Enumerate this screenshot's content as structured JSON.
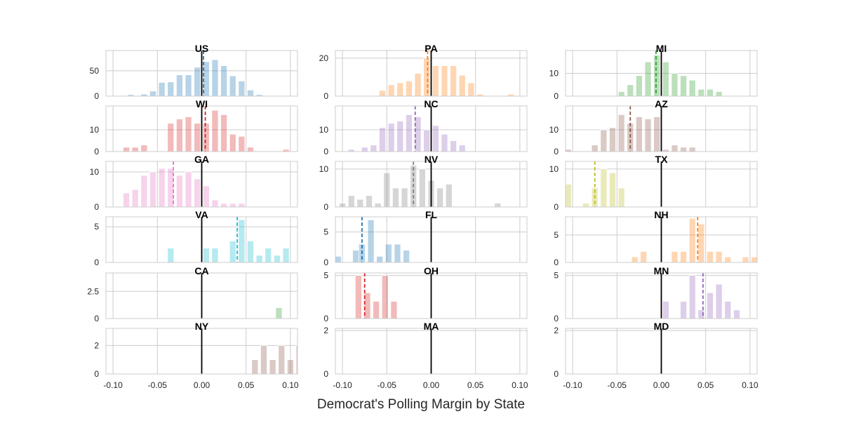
{
  "figure": {
    "xlabel": "Democrat's Polling Margin by State"
  },
  "chart_data": {
    "type": "bar",
    "grid": true,
    "xlim": [
      -0.108,
      0.108
    ],
    "shared_xticks": [
      "-0.10",
      "-0.05",
      "0.00",
      "0.05",
      "0.10"
    ],
    "bin_width": 0.0072,
    "panels": [
      {
        "name": "US",
        "color": "#1f77b4",
        "ylim": [
          0,
          90
        ],
        "yticks": [
          0,
          50
        ],
        "mean": 0.002,
        "zero_line": 0,
        "bars": [
          [
            -0.08,
            3
          ],
          [
            -0.065,
            4
          ],
          [
            -0.055,
            10
          ],
          [
            -0.045,
            27
          ],
          [
            -0.035,
            28
          ],
          [
            -0.025,
            42
          ],
          [
            -0.015,
            42
          ],
          [
            -0.005,
            57
          ],
          [
            0.005,
            68
          ],
          [
            0.015,
            72
          ],
          [
            0.025,
            60
          ],
          [
            0.035,
            40
          ],
          [
            0.045,
            30
          ],
          [
            0.055,
            12
          ],
          [
            0.065,
            3
          ]
        ]
      },
      {
        "name": "PA",
        "color": "#ff7f0e",
        "ylim": [
          0,
          24
        ],
        "yticks": [
          0,
          20
        ],
        "mean": -0.004,
        "zero_line": 0,
        "bars": [
          [
            -0.055,
            3
          ],
          [
            -0.045,
            6
          ],
          [
            -0.035,
            7
          ],
          [
            -0.025,
            8
          ],
          [
            -0.015,
            12
          ],
          [
            -0.005,
            20
          ],
          [
            0.005,
            16
          ],
          [
            0.015,
            16
          ],
          [
            0.025,
            16
          ],
          [
            0.035,
            11
          ],
          [
            0.045,
            7
          ],
          [
            0.055,
            1
          ],
          [
            0.09,
            1
          ]
        ]
      },
      {
        "name": "MI",
        "color": "#2ca02c",
        "ylim": [
          0,
          20
        ],
        "yticks": [
          0,
          10
        ],
        "mean": -0.006,
        "zero_line": 0,
        "bars": [
          [
            -0.045,
            2
          ],
          [
            -0.035,
            5
          ],
          [
            -0.025,
            9
          ],
          [
            -0.015,
            15
          ],
          [
            -0.005,
            18
          ],
          [
            0.005,
            15
          ],
          [
            0.015,
            10
          ],
          [
            0.025,
            9
          ],
          [
            0.035,
            7
          ],
          [
            0.045,
            3
          ],
          [
            0.055,
            3
          ],
          [
            0.065,
            2
          ]
        ]
      },
      {
        "name": "WI",
        "color": "#d62728",
        "ylim": [
          0,
          21
        ],
        "yticks": [
          0,
          10
        ],
        "mean": 0.004,
        "zero_line": 0,
        "bars": [
          [
            -0.085,
            2
          ],
          [
            -0.075,
            2
          ],
          [
            -0.065,
            3
          ],
          [
            -0.035,
            13
          ],
          [
            -0.025,
            15
          ],
          [
            -0.015,
            16
          ],
          [
            -0.005,
            13
          ],
          [
            0.005,
            13
          ],
          [
            0.015,
            19
          ],
          [
            0.025,
            17
          ],
          [
            0.035,
            8
          ],
          [
            0.045,
            7
          ],
          [
            0.055,
            2
          ],
          [
            0.095,
            1
          ]
        ]
      },
      {
        "name": "NC",
        "color": "#9467bd",
        "ylim": [
          0,
          21
        ],
        "yticks": [
          0,
          10
        ],
        "mean": -0.018,
        "zero_line": 0,
        "bars": [
          [
            -0.09,
            1
          ],
          [
            -0.075,
            2
          ],
          [
            -0.065,
            3
          ],
          [
            -0.055,
            11
          ],
          [
            -0.045,
            13
          ],
          [
            -0.035,
            14
          ],
          [
            -0.025,
            17
          ],
          [
            -0.015,
            16
          ],
          [
            -0.005,
            10
          ],
          [
            0.005,
            12
          ],
          [
            0.015,
            8
          ],
          [
            0.025,
            5
          ],
          [
            0.035,
            3
          ]
        ]
      },
      {
        "name": "AZ",
        "color": "#8c564b",
        "ylim": [
          0,
          21
        ],
        "yticks": [
          0,
          10
        ],
        "mean": -0.035,
        "zero_line": 0,
        "bars": [
          [
            -0.105,
            1
          ],
          [
            -0.075,
            3
          ],
          [
            -0.065,
            10
          ],
          [
            -0.055,
            11
          ],
          [
            -0.045,
            17
          ],
          [
            -0.035,
            13
          ],
          [
            -0.025,
            16
          ],
          [
            -0.015,
            15
          ],
          [
            -0.005,
            16
          ],
          [
            0.005,
            1
          ],
          [
            0.015,
            3
          ],
          [
            0.025,
            2
          ],
          [
            0.035,
            2
          ]
        ]
      },
      {
        "name": "GA",
        "color": "#e377c2",
        "ylim": [
          0,
          13
        ],
        "yticks": [
          0,
          10
        ],
        "mean": -0.032,
        "zero_line": 0,
        "bars": [
          [
            -0.085,
            4
          ],
          [
            -0.075,
            5
          ],
          [
            -0.065,
            9
          ],
          [
            -0.055,
            10
          ],
          [
            -0.045,
            11
          ],
          [
            -0.035,
            11
          ],
          [
            -0.025,
            9
          ],
          [
            -0.015,
            10
          ],
          [
            -0.005,
            8
          ],
          [
            0.005,
            6
          ],
          [
            0.015,
            2
          ],
          [
            0.025,
            1
          ],
          [
            0.035,
            1
          ],
          [
            0.045,
            1
          ]
        ]
      },
      {
        "name": "NV",
        "color": "#7f7f7f",
        "ylim": [
          0,
          12
        ],
        "yticks": [
          0,
          10
        ],
        "mean": -0.02,
        "zero_line": 0,
        "bars": [
          [
            -0.1,
            1
          ],
          [
            -0.09,
            3
          ],
          [
            -0.08,
            2
          ],
          [
            -0.07,
            3
          ],
          [
            -0.06,
            1
          ],
          [
            -0.05,
            9
          ],
          [
            -0.04,
            5
          ],
          [
            -0.03,
            5
          ],
          [
            -0.02,
            11
          ],
          [
            -0.01,
            10
          ],
          [
            0.0,
            7
          ],
          [
            0.01,
            5
          ],
          [
            0.02,
            6
          ],
          [
            0.075,
            1
          ]
        ]
      },
      {
        "name": "TX",
        "color": "#bcbd22",
        "ylim": [
          0,
          12
        ],
        "yticks": [
          0,
          10
        ],
        "mean": -0.075,
        "zero_line": 0,
        "bars": [
          [
            -0.105,
            6
          ],
          [
            -0.085,
            1
          ],
          [
            -0.075,
            5
          ],
          [
            -0.065,
            10
          ],
          [
            -0.055,
            9
          ],
          [
            -0.045,
            5
          ]
        ]
      },
      {
        "name": "VA",
        "color": "#17becf",
        "ylim": [
          0,
          6.4
        ],
        "yticks": [
          0,
          5
        ],
        "mean": 0.04,
        "zero_line": 0,
        "bars": [
          [
            -0.035,
            2
          ],
          [
            0.005,
            2
          ],
          [
            0.015,
            2
          ],
          [
            0.035,
            3
          ],
          [
            0.045,
            6
          ],
          [
            0.055,
            3
          ],
          [
            0.065,
            1
          ],
          [
            0.075,
            2
          ],
          [
            0.085,
            1
          ],
          [
            0.095,
            2
          ]
        ]
      },
      {
        "name": "FL",
        "color": "#1f77b4",
        "ylim": [
          0,
          7.5
        ],
        "yticks": [
          0,
          5
        ],
        "mean": -0.078,
        "zero_line": 0,
        "bars": [
          [
            -0.105,
            1
          ],
          [
            -0.085,
            2
          ],
          [
            -0.078,
            3
          ],
          [
            -0.068,
            7
          ],
          [
            -0.058,
            1
          ],
          [
            -0.048,
            3
          ],
          [
            -0.038,
            3
          ],
          [
            -0.028,
            2
          ]
        ]
      },
      {
        "name": "NH",
        "color": "#ff7f0e",
        "ylim": [
          0,
          8.3
        ],
        "yticks": [
          0,
          5
        ],
        "mean": 0.041,
        "zero_line": 0,
        "bars": [
          [
            -0.03,
            1
          ],
          [
            -0.02,
            2
          ],
          [
            0.015,
            2
          ],
          [
            0.025,
            2
          ],
          [
            0.035,
            8
          ],
          [
            0.045,
            7
          ],
          [
            0.055,
            2
          ],
          [
            0.065,
            2
          ],
          [
            0.075,
            1
          ],
          [
            0.095,
            1
          ],
          [
            0.105,
            1
          ]
        ]
      },
      {
        "name": "CA",
        "color": "#2ca02c",
        "ylim": [
          0,
          4.2
        ],
        "yticks": [
          0,
          2.5
        ],
        "zero_line": 0,
        "bars": [
          [
            0.087,
            1
          ]
        ]
      },
      {
        "name": "OH",
        "color": "#d62728",
        "ylim": [
          0,
          5.3
        ],
        "yticks": [
          0,
          5
        ],
        "mean": -0.075,
        "zero_line": 0,
        "bars": [
          [
            -0.082,
            5
          ],
          [
            -0.072,
            3
          ],
          [
            -0.062,
            2
          ],
          [
            -0.052,
            5
          ],
          [
            -0.042,
            2
          ]
        ]
      },
      {
        "name": "MN",
        "color": "#9467bd",
        "ylim": [
          0,
          5.3
        ],
        "yticks": [
          0,
          5
        ],
        "mean": 0.047,
        "zero_line": 0,
        "bars": [
          [
            0.005,
            2
          ],
          [
            0.025,
            2
          ],
          [
            0.035,
            5
          ],
          [
            0.045,
            1
          ],
          [
            0.055,
            3
          ],
          [
            0.065,
            4
          ],
          [
            0.075,
            2
          ],
          [
            0.085,
            1
          ]
        ]
      },
      {
        "name": "NY",
        "color": "#8c564b",
        "ylim": [
          0,
          3.2
        ],
        "yticks": [
          0,
          2
        ],
        "zero_line": 0,
        "bars": [
          [
            0.06,
            1
          ],
          [
            0.07,
            2
          ],
          [
            0.08,
            1
          ],
          [
            0.09,
            2
          ],
          [
            0.1,
            1
          ],
          [
            0.11,
            2
          ]
        ]
      },
      {
        "name": "MA",
        "color": "#e377c2",
        "ylim": [
          0,
          2.1
        ],
        "yticks": [
          0,
          2
        ],
        "zero_line": 0,
        "bars": []
      },
      {
        "name": "MD",
        "color": "#7f7f7f",
        "ylim": [
          0,
          2.1
        ],
        "yticks": [
          0,
          2
        ],
        "zero_line": 0,
        "bars": []
      }
    ]
  }
}
